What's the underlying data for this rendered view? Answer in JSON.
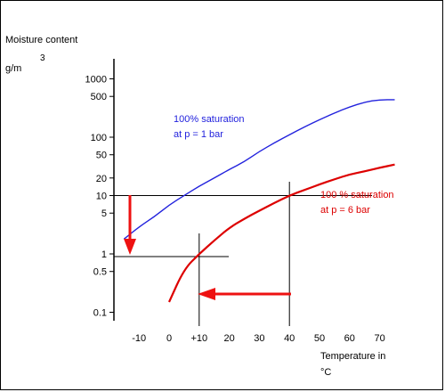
{
  "chart_data": {
    "type": "line",
    "ylabel": "Moisture content",
    "yunit": "g/m",
    "yunit_exponent": "3",
    "xlabel_line1": "Temperature in",
    "xlabel_line2": "°C",
    "yscale": "log",
    "yticks": [
      0.1,
      0.5,
      1,
      5,
      10,
      20,
      50,
      100,
      500,
      1000
    ],
    "ytick_labels": [
      "0.1",
      "0.5",
      "1",
      "5",
      "10",
      "20",
      "50",
      "100",
      "500",
      "1000"
    ],
    "xticks": [
      -10,
      0,
      10,
      20,
      30,
      40,
      50,
      60,
      70
    ],
    "xtick_labels": [
      "-10",
      "0",
      "+10",
      "20",
      "30",
      "40",
      "50",
      "60",
      "70"
    ],
    "series": [
      {
        "name_line1": "100% saturation",
        "name_line2": "at p = 1 bar",
        "color": "#2222dd",
        "x": [
          -15,
          -10,
          -5,
          0,
          5,
          10,
          15,
          20,
          25,
          30,
          35,
          40,
          45,
          50,
          55,
          60,
          65,
          70,
          75
        ],
        "y": [
          1.8,
          2.9,
          4.3,
          6.9,
          10,
          14.5,
          20,
          28,
          38,
          57,
          80,
          110,
          150,
          200,
          260,
          330,
          400,
          440,
          440
        ]
      },
      {
        "name_line1": "100 % saturation",
        "name_line2": "at p = 6 bar",
        "color": "#dd0000",
        "x": [
          0,
          5,
          10,
          15,
          20,
          25,
          30,
          35,
          40,
          45,
          50,
          55,
          60,
          65,
          70,
          75
        ],
        "y": [
          0.15,
          0.55,
          1,
          1.7,
          2.8,
          4,
          5.5,
          7.5,
          10,
          12.5,
          15.5,
          19,
          23,
          26,
          30,
          34
        ]
      }
    ],
    "reference_lines": {
      "horizontal": [
        10,
        0.9
      ],
      "vertical": [
        10,
        40
      ]
    },
    "arrows_color": "#ee1111"
  }
}
